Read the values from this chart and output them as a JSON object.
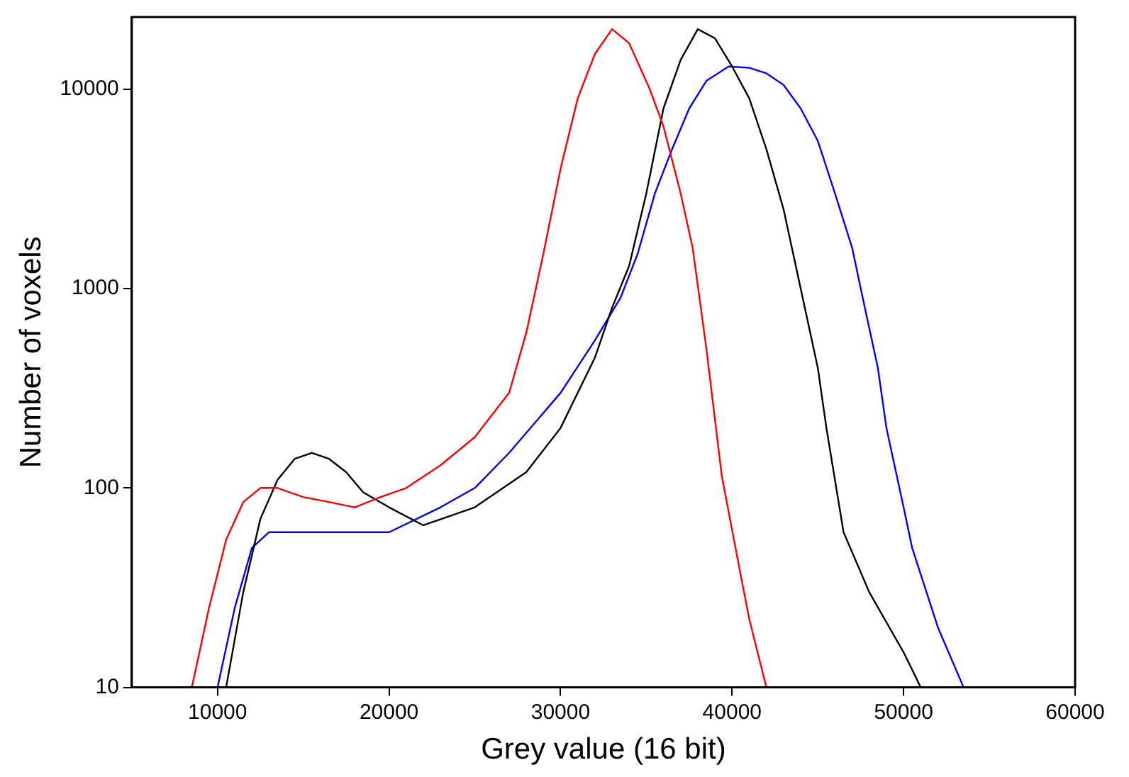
{
  "chart_data": {
    "type": "line",
    "xlabel": "Grey value (16 bit)",
    "ylabel": "Number of voxels",
    "log": "y",
    "grid": false,
    "legend": false,
    "marker": "none",
    "line_style": "solid",
    "xlim": [
      5000,
      60000
    ],
    "xticks": [
      10000,
      20000,
      30000,
      40000,
      50000,
      60000
    ],
    "ylim": [
      10,
      23000
    ],
    "yticks": [
      10,
      100,
      1000,
      10000
    ],
    "series": [
      {
        "color": "#ff0000",
        "x": [
          8500,
          9500,
          10500,
          11500,
          12500,
          13500,
          15000,
          16500,
          18000,
          19500,
          21000,
          23000,
          25000,
          27000,
          28000,
          29000,
          30000,
          31000,
          32000,
          33000,
          34000,
          35200,
          36000,
          37000,
          37700,
          38500,
          39400,
          40200,
          41000,
          42000
        ],
        "values": [
          10,
          25,
          55,
          85,
          100,
          100,
          90,
          85,
          80,
          90,
          100,
          130,
          180,
          300,
          600,
          1500,
          4000,
          9000,
          15000,
          20000,
          17000,
          10000,
          6500,
          3000,
          1600,
          500,
          115,
          50,
          22,
          10
        ]
      },
      {
        "color": "#000000",
        "x": [
          10500,
          11500,
          12500,
          13500,
          14500,
          15500,
          16500,
          17500,
          18500,
          20000,
          22000,
          25000,
          28000,
          30000,
          32000,
          33000,
          34000,
          35000,
          36000,
          37000,
          38000,
          39000,
          40000,
          41000,
          42000,
          43000,
          44000,
          45000,
          45500,
          46500,
          48000,
          50000,
          51000
        ],
        "values": [
          10,
          30,
          70,
          110,
          140,
          150,
          140,
          120,
          95,
          80,
          65,
          80,
          120,
          200,
          450,
          800,
          1300,
          3000,
          8000,
          14000,
          20000,
          18000,
          13000,
          9000,
          5000,
          2500,
          1000,
          400,
          200,
          60,
          30,
          15,
          10
        ]
      },
      {
        "color": "#0000ff",
        "x": [
          10000,
          11000,
          12000,
          13000,
          15000,
          17500,
          20000,
          23000,
          25000,
          27000,
          30000,
          32000,
          33500,
          34500,
          35500,
          36500,
          37500,
          38500,
          39800,
          41000,
          42000,
          43000,
          44000,
          45000,
          46000,
          47000,
          47500,
          48500,
          49000,
          50000,
          50500,
          52000,
          53500
        ],
        "values": [
          10,
          25,
          50,
          60,
          60,
          60,
          60,
          80,
          100,
          150,
          300,
          550,
          900,
          1500,
          3000,
          5000,
          8000,
          11000,
          13000,
          12800,
          12000,
          10500,
          8000,
          5500,
          3000,
          1600,
          1000,
          400,
          200,
          80,
          50,
          20,
          10
        ]
      }
    ]
  }
}
